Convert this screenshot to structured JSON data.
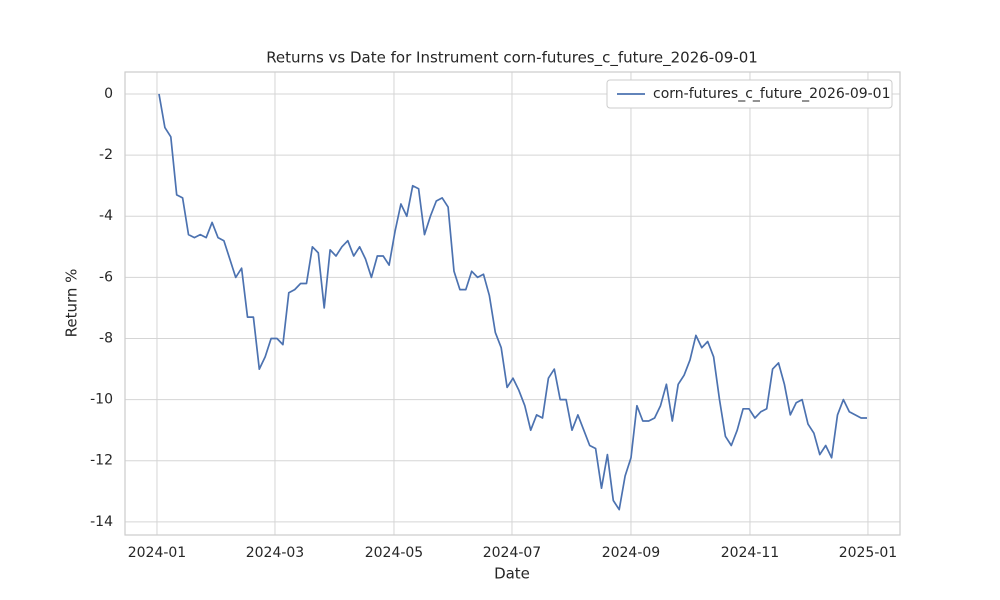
{
  "chart_data": {
    "type": "line",
    "title": "Returns vs Date for Instrument corn-futures_c_future_2026-09-01",
    "xlabel": "Date",
    "ylabel": "Return %",
    "series": [
      {
        "name": "corn-futures_c_future_2026-09-01",
        "color": "#4c72b0",
        "values": [
          0,
          -1.1,
          -1.4,
          -3.3,
          -3.4,
          -4.6,
          -4.7,
          -4.6,
          -4.7,
          -4.2,
          -4.7,
          -4.8,
          -5.4,
          -6.0,
          -5.7,
          -7.3,
          -7.3,
          -9.0,
          -8.6,
          -8.0,
          -8.0,
          -8.2,
          -6.5,
          -6.4,
          -6.2,
          -6.2,
          -5.0,
          -5.2,
          -7.0,
          -5.1,
          -5.3,
          -5.0,
          -4.8,
          -5.3,
          -5.0,
          -5.4,
          -6.0,
          -5.3,
          -5.3,
          -5.6,
          -4.5,
          -3.6,
          -4.0,
          -3.0,
          -3.1,
          -4.6,
          -4.0,
          -3.5,
          -3.4,
          -3.7,
          -5.8,
          -6.4,
          -6.4,
          -5.8,
          -6.0,
          -5.9,
          -6.6,
          -7.8,
          -8.3,
          -9.6,
          -9.3,
          -9.7,
          -10.2,
          -11.0,
          -10.5,
          -10.6,
          -9.3,
          -9.0,
          -10.0,
          -10.0,
          -11.0,
          -10.5,
          -11.0,
          -11.5,
          -11.6,
          -12.9,
          -11.8,
          -13.3,
          -13.6,
          -12.5,
          -11.9,
          -10.2,
          -10.7,
          -10.7,
          -10.6,
          -10.2,
          -9.5,
          -10.7,
          -9.5,
          -9.2,
          -8.7,
          -7.9,
          -8.3,
          -8.1,
          -8.6,
          -10.0,
          -11.2,
          -11.5,
          -11.0,
          -10.3,
          -10.3,
          -10.6,
          -10.4,
          -10.3,
          -9.0,
          -8.8,
          -9.5,
          -10.5,
          -10.1,
          -10.0,
          -10.8,
          -11.1,
          -11.8,
          -11.5,
          -11.9,
          -10.5,
          -10.0,
          -10.4,
          -10.5,
          -10.6,
          -10.6
        ]
      }
    ],
    "xlim": [
      -5.76,
      125.6
    ],
    "xticks": [
      {
        "value": -0.34,
        "label": "2024-01"
      },
      {
        "value": 19.66,
        "label": "2024-03"
      },
      {
        "value": 39.83,
        "label": "2024-05"
      },
      {
        "value": 59.83,
        "label": "2024-07"
      },
      {
        "value": 80.0,
        "label": "2024-09"
      },
      {
        "value": 100.17,
        "label": "2024-11"
      },
      {
        "value": 120.17,
        "label": "2025-01"
      }
    ],
    "ylim": [
      -14.43,
      0.72
    ],
    "yticks": [
      0,
      -2,
      -4,
      -6,
      -8,
      -10,
      -12,
      -14
    ],
    "grid": true,
    "legend": "upper right"
  }
}
